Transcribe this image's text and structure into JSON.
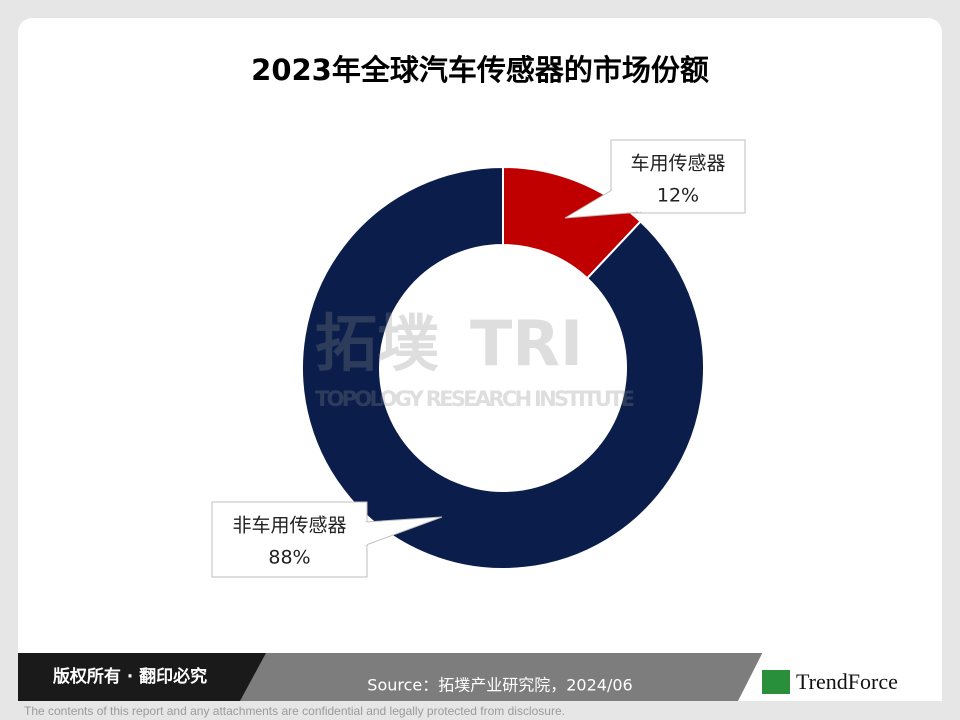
{
  "chart_data": {
    "type": "donut",
    "title": "2023年全球汽车传感器的市场份额",
    "categories": [
      "车用传感器",
      "非车用传感器"
    ],
    "values": [
      12,
      88
    ],
    "value_labels": [
      "12%",
      "88%"
    ],
    "colors": [
      "#c00000",
      "#0b1e4b"
    ]
  },
  "watermark": {
    "brand": "拓墣",
    "mark": "TRI",
    "name": "TOPOLOGY RESEARCH INSTITUTE"
  },
  "footer": {
    "rights": "版权所有 · 翻印必究",
    "source": "Source：拓墣产业研究院，2024/06",
    "logo": "TrendForce",
    "disclaimer": "The contents of this report and any attachments are confidential and legally protected from disclosure."
  }
}
